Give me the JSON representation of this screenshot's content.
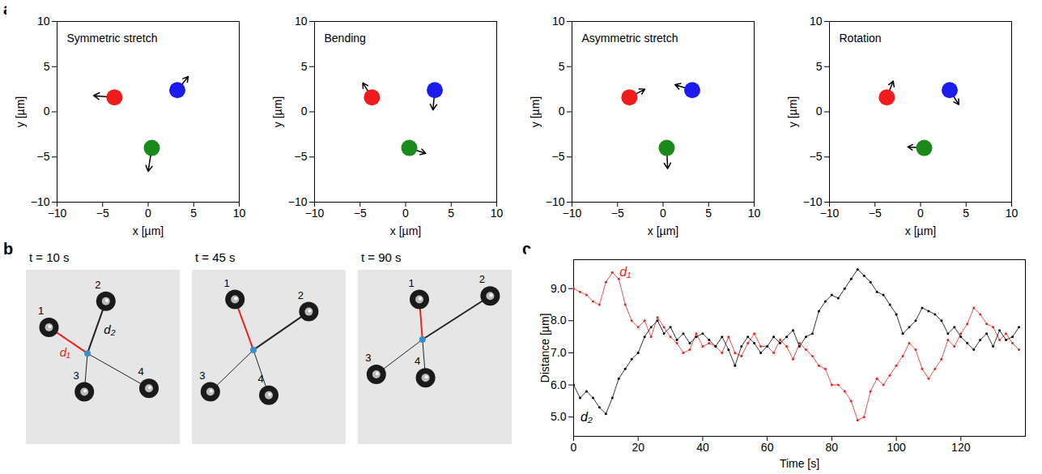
{
  "chart_data": [
    {
      "type": "scatter",
      "panel_label": "a",
      "title": "Symmetric stretch",
      "x_label": "x [µm]",
      "y_label": "y [µm]",
      "xlim": [
        -10,
        10
      ],
      "ylim": [
        -10,
        10
      ],
      "xticks": [
        -10,
        -5,
        0,
        5,
        10
      ],
      "yticks": [
        -10,
        -5,
        0,
        5,
        10
      ],
      "x": [
        -3.7,
        3.2,
        0.4
      ],
      "y": [
        1.6,
        2.4,
        -4.0
      ],
      "colors": [
        "#ee1c1c",
        "#1c1cee",
        "#1a8a1a"
      ],
      "vectors": [
        [
          -2.3,
          0.2
        ],
        [
          1.2,
          1.5
        ],
        [
          -0.4,
          -2.6
        ]
      ]
    },
    {
      "type": "scatter",
      "title": "Bending",
      "x_label": "x [µm]",
      "y_label": "y [µm]",
      "xlim": [
        -10,
        10
      ],
      "ylim": [
        -10,
        10
      ],
      "xticks": [
        -10,
        -5,
        0,
        5,
        10
      ],
      "yticks": [
        -10,
        -5,
        0,
        5,
        10
      ],
      "x": [
        -3.7,
        3.2,
        0.4
      ],
      "y": [
        1.6,
        2.4,
        -4.0
      ],
      "colors": [
        "#ee1c1c",
        "#1c1cee",
        "#1a8a1a"
      ],
      "vectors": [
        [
          -1.0,
          1.6
        ],
        [
          -0.2,
          -2.2
        ],
        [
          1.8,
          -0.6
        ]
      ]
    },
    {
      "type": "scatter",
      "title": "Asymmetric stretch",
      "x_label": "x [µm]",
      "y_label": "y [µm]",
      "xlim": [
        -10,
        10
      ],
      "ylim": [
        -10,
        10
      ],
      "xticks": [
        -10,
        -5,
        0,
        5,
        10
      ],
      "yticks": [
        -10,
        -5,
        0,
        5,
        10
      ],
      "x": [
        -3.7,
        3.2,
        0.4
      ],
      "y": [
        1.6,
        2.4,
        -4.0
      ],
      "colors": [
        "#ee1c1c",
        "#1c1cee",
        "#1a8a1a"
      ],
      "vectors": [
        [
          1.7,
          0.9
        ],
        [
          -1.9,
          0.6
        ],
        [
          0.1,
          -2.3
        ]
      ]
    },
    {
      "type": "scatter",
      "title": "Rotation",
      "x_label": "x [µm]",
      "y_label": "y [µm]",
      "xlim": [
        -10,
        10
      ],
      "ylim": [
        -10,
        10
      ],
      "xticks": [
        -10,
        -5,
        0,
        5,
        10
      ],
      "yticks": [
        -10,
        -5,
        0,
        5,
        10
      ],
      "x": [
        -3.7,
        3.2,
        0.4
      ],
      "y": [
        1.6,
        2.4,
        -4.0
      ],
      "colors": [
        "#ee1c1c",
        "#1c1cee",
        "#1a8a1a"
      ],
      "vectors": [
        [
          0.7,
          1.8
        ],
        [
          1.0,
          -1.6
        ],
        [
          -1.8,
          0.1
        ]
      ]
    },
    {
      "type": "diagram",
      "panel_label": "b",
      "frames": [
        {
          "title": "t = 10 s",
          "particles": [
            "1",
            "2",
            "3",
            "4"
          ],
          "line_labels": [
            "d₁",
            "d₂"
          ]
        },
        {
          "title": "t = 45 s",
          "particles": [
            "1",
            "2",
            "3",
            "4"
          ]
        },
        {
          "title": "t = 90 s",
          "particles": [
            "1",
            "2",
            "3",
            "4"
          ]
        }
      ]
    },
    {
      "type": "line",
      "panel_label": "c",
      "x_label": "Time [s]",
      "y_label": "Distance [µm]",
      "xlim": [
        0,
        140
      ],
      "ylim": [
        4.4,
        9.9
      ],
      "xticks": [
        0,
        20,
        40,
        60,
        80,
        100,
        120
      ],
      "yticks": [
        5,
        6,
        7,
        8,
        9
      ],
      "marker": "dot",
      "x": [
        0,
        2,
        4,
        6,
        8,
        10,
        12,
        14,
        16,
        18,
        20,
        22,
        24,
        26,
        28,
        30,
        32,
        34,
        36,
        38,
        40,
        42,
        44,
        46,
        48,
        50,
        52,
        54,
        56,
        58,
        60,
        62,
        64,
        66,
        68,
        70,
        72,
        74,
        76,
        78,
        80,
        82,
        84,
        86,
        88,
        90,
        92,
        94,
        96,
        98,
        100,
        102,
        104,
        106,
        108,
        110,
        112,
        114,
        116,
        118,
        120,
        122,
        124,
        126,
        128,
        130,
        132,
        134,
        136,
        138
      ],
      "series": [
        {
          "name": "d₁",
          "color": "#e8251d",
          "values": [
            9.0,
            8.9,
            8.8,
            8.6,
            8.5,
            9.2,
            9.5,
            9.3,
            8.5,
            8.0,
            7.8,
            8.0,
            7.5,
            8.1,
            7.8,
            7.5,
            7.3,
            7.0,
            7.1,
            7.6,
            7.2,
            7.3,
            7.2,
            7.0,
            7.5,
            7.0,
            6.9,
            7.3,
            7.6,
            7.2,
            7.2,
            7.0,
            7.4,
            7.2,
            6.8,
            7.3,
            7.1,
            6.9,
            6.6,
            6.5,
            6.0,
            6.0,
            5.8,
            5.5,
            4.9,
            5.0,
            5.8,
            6.2,
            6.0,
            6.3,
            6.6,
            6.9,
            7.3,
            7.1,
            6.5,
            6.2,
            6.5,
            6.8,
            7.4,
            7.2,
            7.6,
            7.9,
            8.4,
            8.2,
            7.9,
            7.8,
            7.4,
            7.6,
            7.3,
            7.1
          ]
        },
        {
          "name": "d₂",
          "color": "#000000",
          "values": [
            6.0,
            5.6,
            5.8,
            5.6,
            5.3,
            5.1,
            5.6,
            6.2,
            6.5,
            6.8,
            7.0,
            7.5,
            7.8,
            8.0,
            7.6,
            7.8,
            7.4,
            7.6,
            7.3,
            7.5,
            7.6,
            7.4,
            7.2,
            7.5,
            7.1,
            6.6,
            7.2,
            7.5,
            7.3,
            7.0,
            7.2,
            7.5,
            7.3,
            7.5,
            7.7,
            7.2,
            7.5,
            7.6,
            8.3,
            8.6,
            8.8,
            8.7,
            9.0,
            9.3,
            9.6,
            9.4,
            9.2,
            8.9,
            8.8,
            8.5,
            8.2,
            7.6,
            7.8,
            8.0,
            8.4,
            8.3,
            8.2,
            8.0,
            7.6,
            7.8,
            7.5,
            7.3,
            7.1,
            7.4,
            7.6,
            7.2,
            7.7,
            7.4,
            7.5,
            7.8
          ]
        }
      ],
      "annotations": [
        {
          "text": "d₁",
          "x": 16,
          "y": 9.5,
          "color": "#e8251d"
        },
        {
          "text": "d₂",
          "x": 4,
          "y": 5.0,
          "color": "#000000"
        }
      ]
    }
  ]
}
